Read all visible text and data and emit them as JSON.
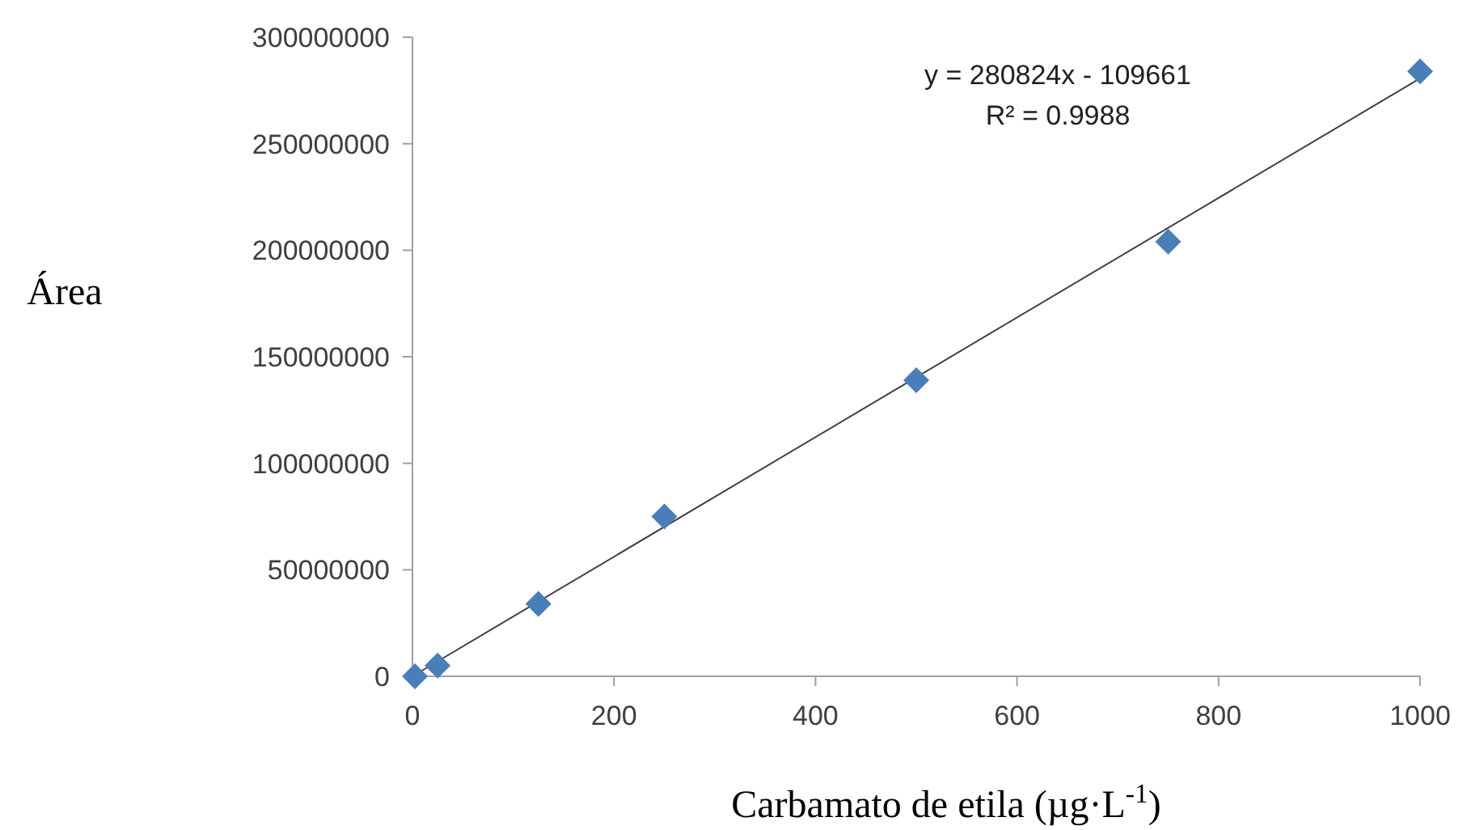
{
  "chart_data": {
    "type": "scatter",
    "xlabel": "Carbamato de etila (µg·L$^{-1}$)",
    "ylabel": "Área",
    "xlim": [
      0,
      1000
    ],
    "xticks": [
      0,
      200,
      400,
      600,
      800,
      1000
    ],
    "ylim": [
      0,
      300000000
    ],
    "yticks": [
      0,
      50000000,
      100000000,
      150000000,
      200000000,
      250000000,
      300000000
    ],
    "grid": false,
    "marker": "diamond",
    "annotations": [
      "y = 280824x - 109661",
      "R² = 0.9988"
    ],
    "series": [
      {
        "color": "#4a7ebb",
        "x": [
          2.5,
          25,
          125,
          250,
          500,
          750,
          1000
        ],
        "values": [
          0,
          5000000,
          34000000,
          75000000,
          139000000,
          204000000,
          284000000
        ]
      },
      {
        "type": "line",
        "color": "#404040",
        "line_style": "solid",
        "marker": "none",
        "x": [
          0,
          1000
        ],
        "values": [
          0,
          280700000
        ]
      }
    ]
  }
}
